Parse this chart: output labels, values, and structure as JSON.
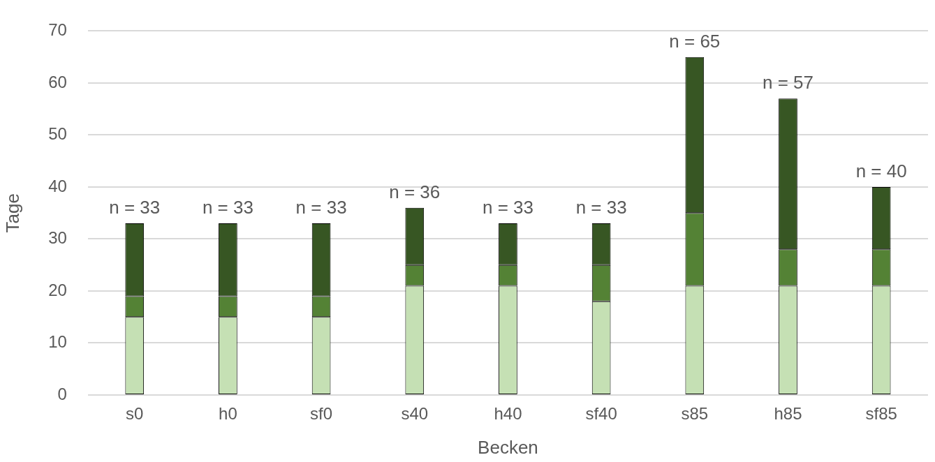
{
  "chart_data": {
    "type": "bar",
    "stacked": true,
    "xlabel": "Becken",
    "ylabel": "Tage",
    "categories": [
      "s0",
      "h0",
      "sf0",
      "s40",
      "h40",
      "sf40",
      "s85",
      "h85",
      "sf85"
    ],
    "series": [
      {
        "color": "#c5e0b4",
        "values": [
          15,
          15,
          15,
          21,
          21,
          18,
          21,
          21,
          21
        ]
      },
      {
        "color": "#548235",
        "values": [
          4,
          4,
          4,
          4,
          4,
          7,
          14,
          7,
          7
        ]
      },
      {
        "color": "#375623",
        "values": [
          14,
          14,
          14,
          11,
          8,
          8,
          30,
          29,
          12
        ]
      }
    ],
    "totals": [
      "n = 33",
      "n = 33",
      "n = 33",
      "n = 36",
      "n = 33",
      "n = 33",
      "n = 65",
      "n = 57",
      "n = 40"
    ],
    "ylim": [
      0,
      70
    ],
    "yticks": [
      0,
      10,
      20,
      30,
      40,
      50,
      60,
      70
    ],
    "grid": "y",
    "legend": false
  }
}
